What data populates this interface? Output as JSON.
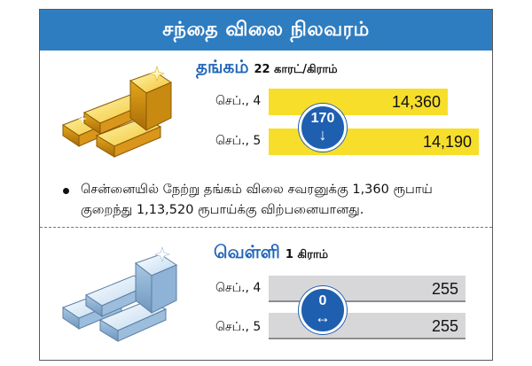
{
  "header": {
    "title": "சந்தை விலை நிலவரம்"
  },
  "gold": {
    "title": "தங்கம்",
    "unit": "22 காரட்/கிராம்",
    "rows": [
      {
        "label": "செப்., 4",
        "value": "14,360"
      },
      {
        "label": "செப்., 5",
        "value": "14,190"
      }
    ],
    "change": "170",
    "change_icon": "arrow-down-icon",
    "note": "சென்னையில் நேற்று தங்கம் விலை சவரனுக்கு 1,360 ரூபாய் குறைந்து 1,13,520 ரூபாய்க்கு விற்பனையானது.",
    "colors": {
      "bar": "#f7de2a",
      "badge": "#1f5fb0",
      "title": "#1f64b8"
    }
  },
  "silver": {
    "title": "வெள்ளி",
    "unit": "1 கிராம்",
    "rows": [
      {
        "label": "செப்., 4",
        "value": "255"
      },
      {
        "label": "செப்., 5",
        "value": "255"
      }
    ],
    "change": "0",
    "change_icon": "left-right-arrow-icon",
    "colors": {
      "bar": "#d7d7d9",
      "badge": "#1f5fb0"
    }
  },
  "colors": {
    "header": "#2f7dc1"
  }
}
